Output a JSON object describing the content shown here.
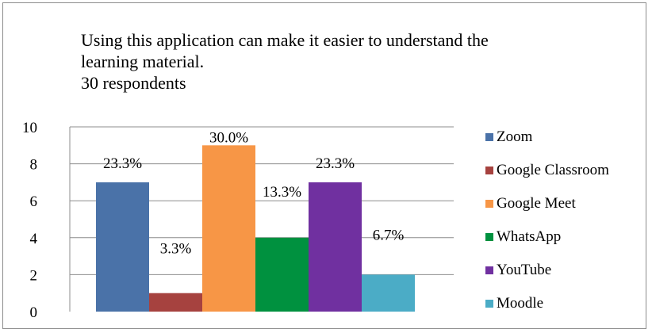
{
  "chart_data": {
    "type": "bar",
    "title_lines": [
      "Using this application can make it easier to understand the",
      "learning material.",
      "30 respondents"
    ],
    "xlabel": "",
    "ylabel": "",
    "ylim": [
      0,
      10
    ],
    "yticks": [
      0,
      2,
      4,
      6,
      8,
      10
    ],
    "grid": true,
    "legend_position": "right",
    "series": [
      {
        "name": "Zoom",
        "value": 7,
        "label": "23.3%",
        "color": "#4a72a8"
      },
      {
        "name": "Google Classroom",
        "value": 1,
        "label": "3.3%",
        "color": "#a6423f"
      },
      {
        "name": "Google Meet",
        "value": 9,
        "label": "30.0%",
        "color": "#f79646"
      },
      {
        "name": "WhatsApp",
        "value": 4,
        "label": "13.3%",
        "color": "#00913f"
      },
      {
        "name": "YouTube",
        "value": 7,
        "label": "23.3%",
        "color": "#7030a0"
      },
      {
        "name": "Moodle",
        "value": 2,
        "label": "6.7%",
        "color": "#4bacc6"
      }
    ]
  }
}
